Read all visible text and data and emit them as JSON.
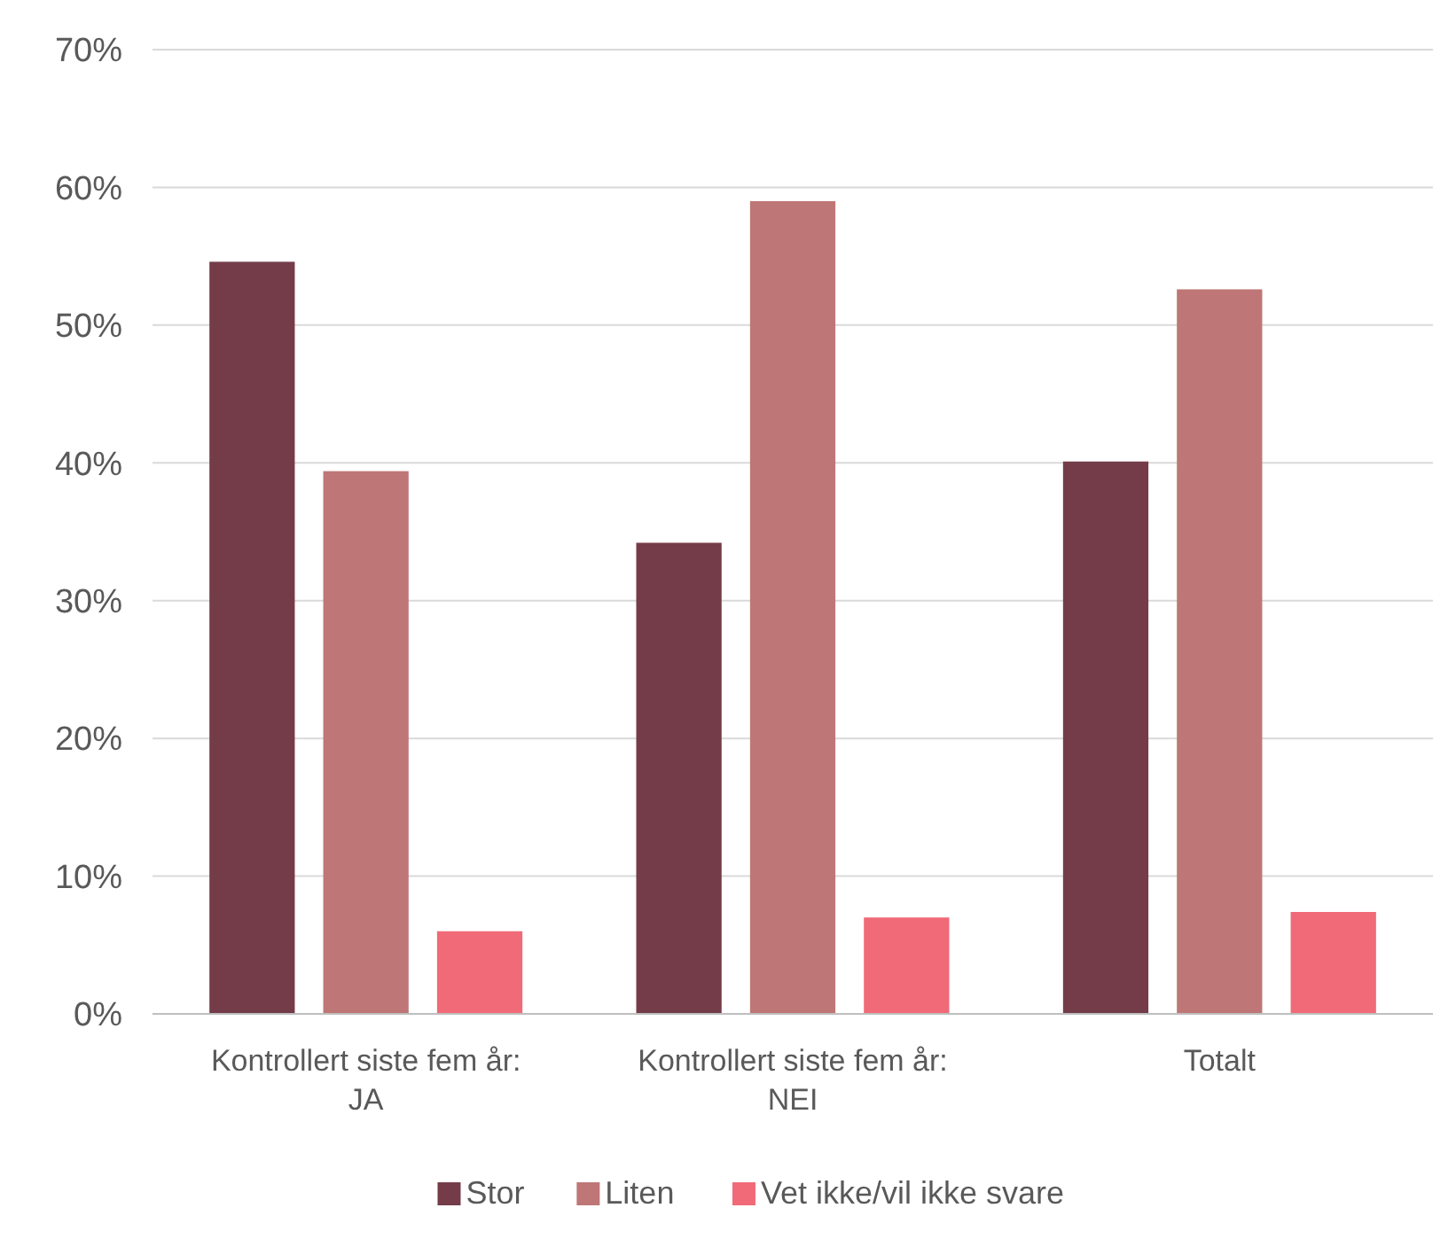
{
  "chart_data": {
    "type": "bar",
    "categories": [
      "Kontrollert siste fem år: JA",
      "Kontrollert siste fem år: NEI",
      "Totalt"
    ],
    "series": [
      {
        "name": "Stor",
        "color": "#743c49",
        "values": [
          54.6,
          34.2,
          40.1
        ]
      },
      {
        "name": "Liten",
        "color": "#be7776",
        "values": [
          39.4,
          59.0,
          52.6
        ]
      },
      {
        "name": "Vet ikke/vil ikke svare",
        "color": "#f06a78",
        "values": [
          6.0,
          7.0,
          7.4
        ]
      }
    ],
    "ylim": [
      0,
      70
    ],
    "yticks": [
      {
        "value": 0,
        "label": "0%"
      },
      {
        "value": 10,
        "label": "10%"
      },
      {
        "value": 20,
        "label": "20%"
      },
      {
        "value": 30,
        "label": "30%"
      },
      {
        "value": 40,
        "label": "40%"
      },
      {
        "value": 50,
        "label": "50%"
      },
      {
        "value": 60,
        "label": "60%"
      },
      {
        "value": 70,
        "label": "70%"
      }
    ],
    "grid": "y",
    "legend": "bottom"
  }
}
